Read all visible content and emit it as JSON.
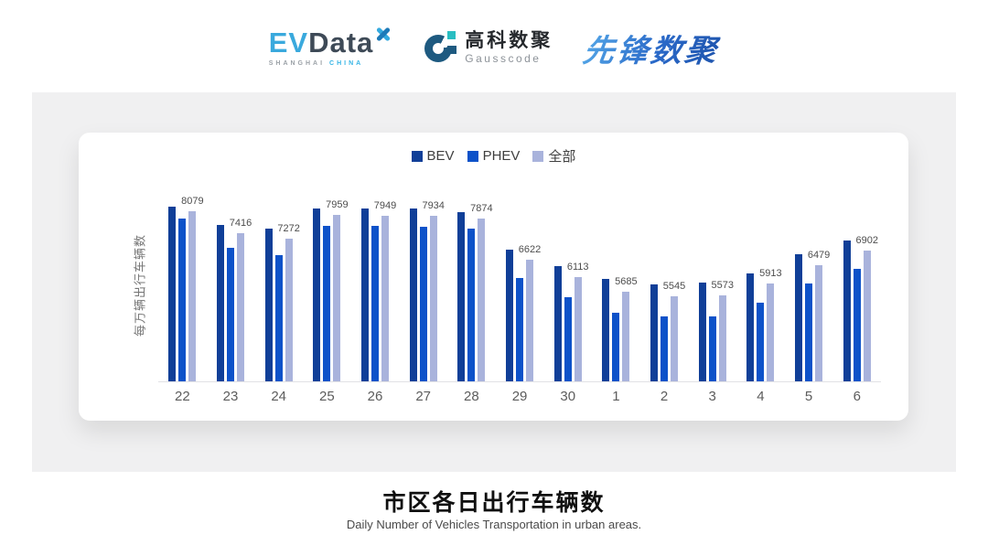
{
  "header": {
    "logos": {
      "evdata": {
        "ev": "EV",
        "data": "Data",
        "sub_left": "SHANGHAI",
        "sub_right": "CHINA"
      },
      "gausscode": {
        "cn": "高科数聚",
        "en": "Gausscode"
      },
      "pioneer": {
        "text": "先锋数聚"
      }
    }
  },
  "chart_data": {
    "type": "bar",
    "categories": [
      "22",
      "23",
      "24",
      "25",
      "26",
      "27",
      "28",
      "29",
      "30",
      "1",
      "2",
      "3",
      "4",
      "5",
      "6"
    ],
    "series": [
      {
        "key": "bev",
        "name": "BEV",
        "color": "#103f98",
        "values": [
          8224,
          7681,
          7564,
          8170,
          8153,
          8153,
          8045,
          6931,
          6450,
          6070,
          5907,
          5953,
          6233,
          6795,
          7203
        ],
        "labels_shown": false
      },
      {
        "key": "phev",
        "name": "PHEV",
        "color": "#0d52c9",
        "values": [
          7855,
          6993,
          6768,
          7654,
          7654,
          7611,
          7564,
          6097,
          5500,
          5046,
          4938,
          4938,
          5345,
          5934,
          6369
        ],
        "labels_shown": false
      },
      {
        "key": "all",
        "name": "全部",
        "color": "#a9b3dc",
        "values": [
          8079,
          7416,
          7272,
          7959,
          7949,
          7934,
          7874,
          6622,
          6113,
          5685,
          5545,
          5573,
          5913,
          6479,
          6902
        ],
        "labels_shown": true
      }
    ],
    "ylabel": "每万辆出行车辆数",
    "xlabel": "",
    "ylim": [
      3000,
      8600
    ],
    "grid": false,
    "legend_position": "top-center"
  },
  "footer": {
    "title": "市区各日出行车辆数",
    "subtitle": "Daily Number of Vehicles Transportation in urban areas."
  }
}
